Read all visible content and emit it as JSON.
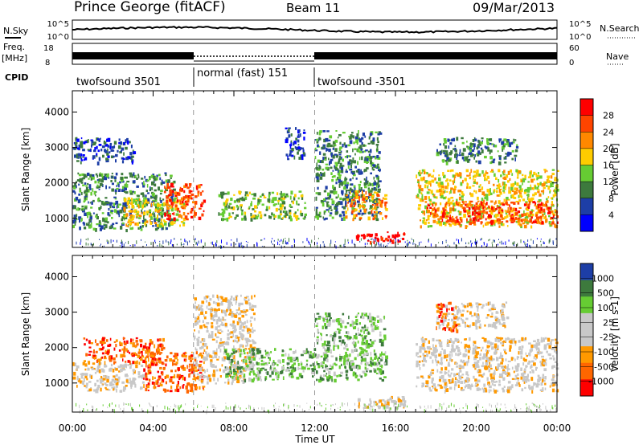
{
  "header": {
    "station": "Prince George (fitACF)",
    "beam": "Beam 11",
    "date": "09/Mar/2013"
  },
  "left_labels": {
    "nsky": "N.Sky",
    "freq": "Freq.",
    "freq_unit": "[MHz]",
    "cpid": "CPID"
  },
  "right_labels": {
    "nsearch": "N.Search",
    "nave": "Nave"
  },
  "noise_panel": {
    "left_ticks": [
      "10^5",
      "10^0"
    ],
    "right_ticks": [
      "10^5",
      "10^0"
    ]
  },
  "freq_panel": {
    "left_ticks": [
      "18",
      "8"
    ],
    "right_ticks": [
      "60",
      "0"
    ]
  },
  "cpid": [
    {
      "label": "twofsound 3501",
      "start_h": 0,
      "end_h": 6
    },
    {
      "label": "normal (fast) 151",
      "start_h": 6,
      "end_h": 12
    },
    {
      "label": "twofsound -3501",
      "start_h": 12,
      "end_h": 24
    }
  ],
  "colors": {
    "power_scale": [
      "#0000ff",
      "#1d3ea6",
      "#3d7a3d",
      "#66cc33",
      "#ffcc00",
      "#ff8800",
      "#ff4400",
      "#ff0000"
    ],
    "velocity_scale": [
      "#ff0000",
      "#ff6600",
      "#ff9900",
      "#c8c8c8",
      "#c8c8c8",
      "#66cc33",
      "#3d7a3d",
      "#1d3ea6"
    ],
    "ground_scatter": "#c8c8c8"
  },
  "chart_data": [
    {
      "type": "heatmap",
      "panel": "power",
      "ylabel": "Slant Range [km]",
      "xlim_hours": [
        0,
        24
      ],
      "ylim": [
        180,
        4600
      ],
      "yticks": [
        "1000",
        "2000",
        "3000",
        "4000"
      ],
      "colorbar_label": "Power [dB]",
      "colorbar_ticks": [
        "28",
        "24",
        "20",
        "16",
        "12",
        "8",
        "4"
      ],
      "scale_range": [
        0,
        32
      ],
      "regions": [
        {
          "t0": 0.0,
          "t1": 5.0,
          "r0": 700,
          "r1": 2300,
          "level": 2
        },
        {
          "t0": 0.0,
          "t1": 3.0,
          "r0": 2600,
          "r1": 3300,
          "level": 1
        },
        {
          "t0": 2.5,
          "t1": 5.5,
          "r0": 800,
          "r1": 1600,
          "level": 4
        },
        {
          "t0": 4.5,
          "t1": 6.5,
          "r0": 1000,
          "r1": 2000,
          "level": 6
        },
        {
          "t0": 7.2,
          "t1": 11.5,
          "r0": 1000,
          "r1": 1800,
          "level": 3
        },
        {
          "t0": 10.5,
          "t1": 11.5,
          "r0": 2700,
          "r1": 3600,
          "level": 1
        },
        {
          "t0": 12.0,
          "t1": 15.2,
          "r0": 1000,
          "r1": 3500,
          "level": 2
        },
        {
          "t0": 13.5,
          "t1": 15.5,
          "r0": 1000,
          "r1": 1800,
          "level": 5
        },
        {
          "t0": 14.0,
          "t1": 16.5,
          "r0": 350,
          "r1": 650,
          "level": 7
        },
        {
          "t0": 17.0,
          "t1": 24.0,
          "r0": 800,
          "r1": 2400,
          "level": 4
        },
        {
          "t0": 17.5,
          "t1": 24.0,
          "r0": 900,
          "r1": 1500,
          "level": 6
        },
        {
          "t0": 18.0,
          "t1": 22.0,
          "r0": 2600,
          "r1": 3300,
          "level": 2
        }
      ]
    },
    {
      "type": "heatmap",
      "panel": "velocity",
      "xlabel": "Time UT",
      "ylabel": "Slant Range [km]",
      "xlim_hours": [
        0,
        24
      ],
      "xticks": [
        "00:00",
        "04:00",
        "08:00",
        "12:00",
        "16:00",
        "20:00",
        "00:00"
      ],
      "ylim": [
        180,
        4600
      ],
      "yticks": [
        "1000",
        "2000",
        "3000",
        "4000"
      ],
      "colorbar_label": "Velocity [m s-1]",
      "colorbar_ticks": [
        "1000",
        "500",
        "100",
        "25",
        "-25",
        "-100",
        "-500",
        "-1000"
      ],
      "scale_range": [
        -1000,
        1000
      ],
      "regions": [
        {
          "t0": 0.0,
          "t1": 3.5,
          "r0": 800,
          "r1": 1600,
          "level": 3
        },
        {
          "t0": 0.5,
          "t1": 4.5,
          "r0": 1600,
          "r1": 2300,
          "level": 1
        },
        {
          "t0": 3.5,
          "t1": 6.5,
          "r0": 800,
          "r1": 1900,
          "level": 1
        },
        {
          "t0": 6.0,
          "t1": 9.0,
          "r0": 1000,
          "r1": 3500,
          "level": 3
        },
        {
          "t0": 7.5,
          "t1": 12.0,
          "r0": 1100,
          "r1": 2000,
          "level": 5
        },
        {
          "t0": 12.0,
          "t1": 15.5,
          "r0": 1100,
          "r1": 3000,
          "level": 5
        },
        {
          "t0": 14.0,
          "t1": 16.5,
          "r0": 300,
          "r1": 650,
          "level": 3
        },
        {
          "t0": 17.0,
          "t1": 24.0,
          "r0": 800,
          "r1": 2300,
          "level": 3
        },
        {
          "t0": 18.0,
          "t1": 21.5,
          "r0": 2600,
          "r1": 3300,
          "level": 3
        },
        {
          "t0": 18.0,
          "t1": 19.0,
          "r0": 2500,
          "r1": 3300,
          "level": 1
        }
      ]
    }
  ]
}
